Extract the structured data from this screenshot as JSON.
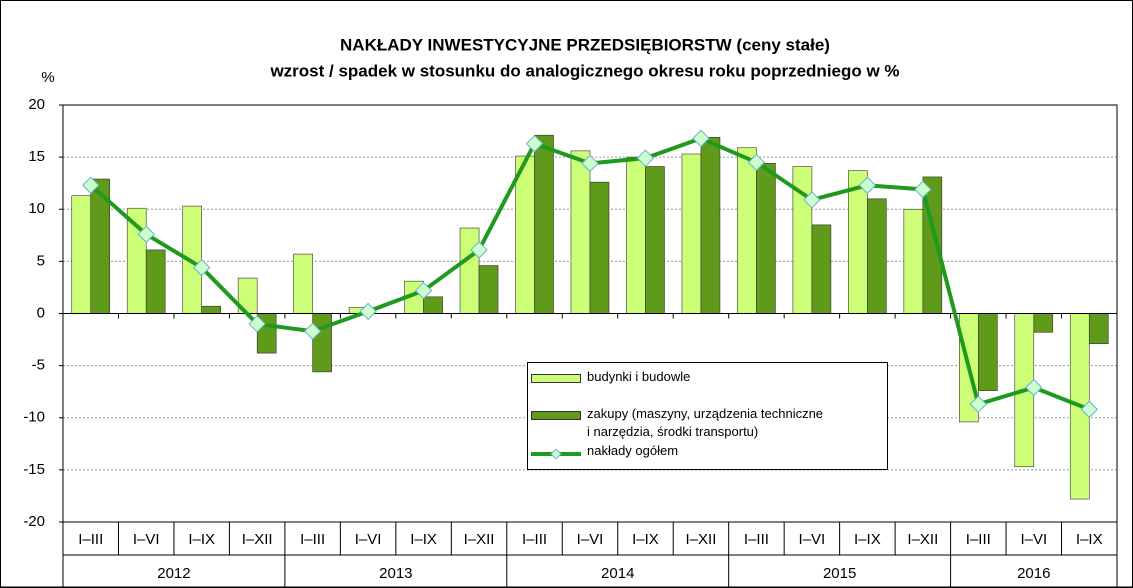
{
  "chart_data": {
    "type": "bar_line",
    "title": "NAKŁADY INWESTYCYJNE  PRZEDSIĘBIORSTW  (ceny stałe)",
    "subtitle": "wzrost / spadek w stosunku do analogicznego okresu roku poprzedniego w %",
    "y_label": "%",
    "year_groups": [
      {
        "year": "2012",
        "periods": [
          "I–III",
          "I–VI",
          "I–IX",
          "I–XII"
        ]
      },
      {
        "year": "2013",
        "periods": [
          "I–III",
          "I–VI",
          "I–IX",
          "I–XII"
        ]
      },
      {
        "year": "2014",
        "periods": [
          "I–III",
          "I–VI",
          "I–IX",
          "I–XII"
        ]
      },
      {
        "year": "2015",
        "periods": [
          "I–III",
          "I–VI",
          "I–IX",
          "I–XII"
        ]
      },
      {
        "year": "2016",
        "periods": [
          "I–III",
          "I–VI",
          "I–IX"
        ]
      }
    ],
    "series": [
      {
        "name": "budynki i budowle",
        "kind": "bar",
        "color": "#ccff77",
        "values": [
          11.3,
          10.1,
          10.3,
          3.4,
          5.7,
          0.6,
          3.1,
          8.2,
          15.1,
          15.6,
          15.0,
          15.3,
          15.9,
          14.1,
          13.7,
          10.0,
          -10.4,
          -14.7,
          -17.8
        ]
      },
      {
        "name": "zakupy (maszyny, urządzenia techniczne\ni narzędzia, środki transportu)",
        "kind": "bar",
        "color": "#5f9a1a",
        "values": [
          12.9,
          6.1,
          0.7,
          -3.8,
          -5.6,
          0.0,
          1.6,
          4.6,
          17.1,
          12.6,
          14.1,
          16.9,
          14.4,
          8.5,
          11.0,
          13.1,
          -7.4,
          -1.8,
          -2.9
        ]
      },
      {
        "name": "nakłady ogółem",
        "kind": "line",
        "color": "#1f9a1f",
        "values": [
          12.3,
          7.6,
          4.4,
          -1.0,
          -1.7,
          0.2,
          2.2,
          6.1,
          16.3,
          14.4,
          14.9,
          16.8,
          14.5,
          10.9,
          12.3,
          11.9,
          -8.7,
          -7.1,
          -9.2
        ]
      }
    ],
    "ylim": [
      -20,
      20
    ],
    "yticks": [
      -20,
      -15,
      -10,
      -5,
      0,
      5,
      10,
      15,
      20
    ],
    "grid": true
  }
}
